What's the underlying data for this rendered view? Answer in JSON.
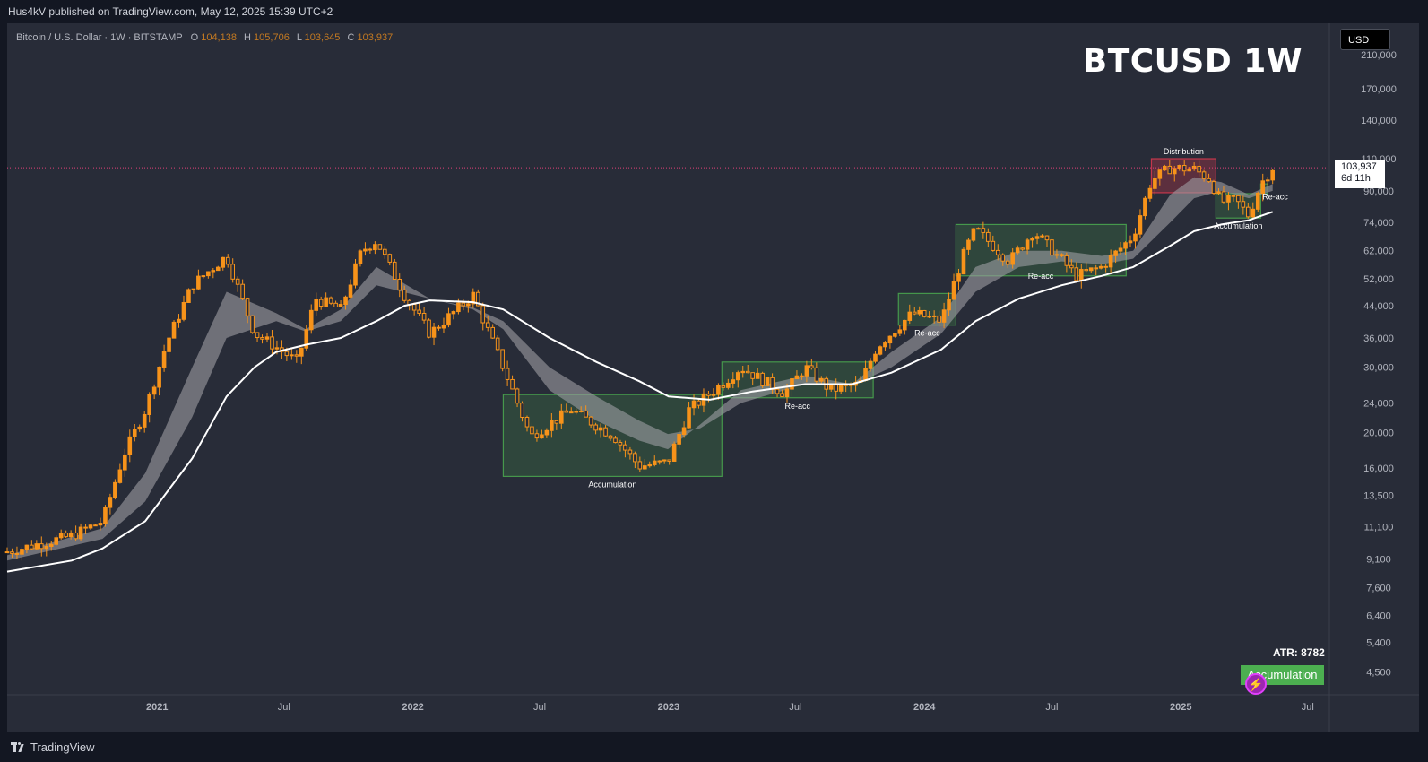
{
  "header": {
    "publisher_line": "Hus4kV published on TradingView.com, May 12, 2025 15:39 UTC+2"
  },
  "legend": {
    "symbol": "Bitcoin / U.S. Dollar · 1W · BITSTAMP",
    "o_label": "O",
    "o_value": "104,138",
    "h_label": "H",
    "h_value": "105,706",
    "l_label": "L",
    "l_value": "103,645",
    "c_label": "C",
    "c_value": "103,937"
  },
  "overlay_title": "BTCUSD 1W",
  "currency": "USD",
  "price_tag": {
    "price": "103,937",
    "countdown": "6d 11h"
  },
  "indicator": {
    "atr_label": "ATR: 8782",
    "state": "Accumulation"
  },
  "footer": {
    "brand": "TradingView"
  },
  "colors": {
    "candle": "#f7931a",
    "ema_band": "#9e9ea4",
    "sma_line": "#ffffff",
    "accumulation_zone": "#4caf50",
    "distribution_zone": "#e53950",
    "current_price_line": "#e0417a"
  },
  "chart_data": {
    "type": "candlestick",
    "scale": "log",
    "ylim": [
      3900,
      250000
    ],
    "x_range": [
      "2020-06-01",
      "2025-08-01"
    ],
    "y_ticks": [
      210000,
      170000,
      140000,
      110000,
      90000,
      74000,
      62000,
      52000,
      44000,
      36000,
      30000,
      24000,
      20000,
      16000,
      13500,
      11100,
      9100,
      7600,
      6400,
      5400,
      4500
    ],
    "y_tick_labels": [
      "210,000",
      "170,000",
      "140,000",
      "110,000",
      "90,000",
      "74,000",
      "62,000",
      "52,000",
      "44,000",
      "36,000",
      "30,000",
      "24,000",
      "20,000",
      "16,000",
      "13,500",
      "11,100",
      "9,100",
      "7,600",
      "6,400",
      "5,400",
      "4,500"
    ],
    "x_ticks": [
      {
        "date": "2021-01-01",
        "label": "2021"
      },
      {
        "date": "2021-07-01",
        "label": "Jul"
      },
      {
        "date": "2022-01-01",
        "label": "2022"
      },
      {
        "date": "2022-07-01",
        "label": "Jul"
      },
      {
        "date": "2023-01-01",
        "label": "2023"
      },
      {
        "date": "2023-07-01",
        "label": "Jul"
      },
      {
        "date": "2024-01-01",
        "label": "2024"
      },
      {
        "date": "2024-07-01",
        "label": "Jul"
      },
      {
        "date": "2025-01-01",
        "label": "2025"
      },
      {
        "date": "2025-07-01",
        "label": "Jul"
      }
    ],
    "price_points": [
      [
        "2020-06-01",
        9500
      ],
      [
        "2020-09-01",
        10500
      ],
      [
        "2020-10-15",
        11500
      ],
      [
        "2020-11-15",
        17500
      ],
      [
        "2020-12-15",
        23000
      ],
      [
        "2021-01-15",
        35000
      ],
      [
        "2021-02-20",
        50000
      ],
      [
        "2021-04-10",
        60000
      ],
      [
        "2021-05-20",
        37000
      ],
      [
        "2021-06-20",
        34000
      ],
      [
        "2021-07-20",
        31000
      ],
      [
        "2021-08-15",
        46000
      ],
      [
        "2021-09-20",
        43000
      ],
      [
        "2021-10-20",
        62000
      ],
      [
        "2021-11-10",
        66000
      ],
      [
        "2021-12-20",
        47000
      ],
      [
        "2022-01-25",
        37000
      ],
      [
        "2022-03-28",
        47000
      ],
      [
        "2022-05-10",
        30000
      ],
      [
        "2022-06-18",
        19500
      ],
      [
        "2022-08-15",
        23000
      ],
      [
        "2022-10-15",
        19500
      ],
      [
        "2022-11-20",
        16200
      ],
      [
        "2022-12-31",
        16600
      ],
      [
        "2023-01-30",
        23000
      ],
      [
        "2023-03-18",
        27000
      ],
      [
        "2023-04-14",
        30000
      ],
      [
        "2023-06-15",
        25500
      ],
      [
        "2023-07-15",
        30000
      ],
      [
        "2023-08-20",
        26000
      ],
      [
        "2023-10-01",
        27000
      ],
      [
        "2023-10-25",
        34000
      ],
      [
        "2023-12-15",
        42000
      ],
      [
        "2024-01-25",
        40000
      ],
      [
        "2024-02-28",
        62000
      ],
      [
        "2024-03-14",
        71000
      ],
      [
        "2024-05-01",
        58000
      ],
      [
        "2024-06-05",
        70000
      ],
      [
        "2024-08-05",
        53000
      ],
      [
        "2024-09-10",
        56000
      ],
      [
        "2024-10-25",
        68000
      ],
      [
        "2024-11-20",
        96000
      ],
      [
        "2024-12-17",
        104000
      ],
      [
        "2025-01-20",
        103000
      ],
      [
        "2025-02-10",
        97000
      ],
      [
        "2025-02-28",
        84000
      ],
      [
        "2025-03-20",
        85000
      ],
      [
        "2025-04-08",
        77000
      ],
      [
        "2025-04-25",
        94000
      ],
      [
        "2025-05-12",
        103937
      ]
    ],
    "ema_fast_points": [
      [
        "2020-06-01",
        9300
      ],
      [
        "2020-10-15",
        11000
      ],
      [
        "2020-12-15",
        15500
      ],
      [
        "2021-02-20",
        30000
      ],
      [
        "2021-04-10",
        48000
      ],
      [
        "2021-06-20",
        42000
      ],
      [
        "2021-08-01",
        38000
      ],
      [
        "2021-09-20",
        43000
      ],
      [
        "2021-11-10",
        56000
      ],
      [
        "2022-01-25",
        46000
      ],
      [
        "2022-03-28",
        43000
      ],
      [
        "2022-05-10",
        38000
      ],
      [
        "2022-07-15",
        26000
      ],
      [
        "2022-09-20",
        21500
      ],
      [
        "2022-11-20",
        19000
      ],
      [
        "2022-12-31",
        18000
      ],
      [
        "2023-02-15",
        21000
      ],
      [
        "2023-04-14",
        26000
      ],
      [
        "2023-07-15",
        28500
      ],
      [
        "2023-09-20",
        27000
      ],
      [
        "2023-11-15",
        33000
      ],
      [
        "2024-01-25",
        41000
      ],
      [
        "2024-03-14",
        56000
      ],
      [
        "2024-05-15",
        62000
      ],
      [
        "2024-07-15",
        62000
      ],
      [
        "2024-09-10",
        60000
      ],
      [
        "2024-10-25",
        62000
      ],
      [
        "2024-12-17",
        88000
      ],
      [
        "2025-01-20",
        98000
      ],
      [
        "2025-02-28",
        95000
      ],
      [
        "2025-04-08",
        88000
      ],
      [
        "2025-05-12",
        94000
      ]
    ],
    "ema_slow_points": [
      [
        "2020-06-01",
        9000
      ],
      [
        "2020-10-15",
        10300
      ],
      [
        "2020-12-15",
        13000
      ],
      [
        "2021-02-20",
        22000
      ],
      [
        "2021-04-10",
        36000
      ],
      [
        "2021-06-20",
        40000
      ],
      [
        "2021-08-01",
        37500
      ],
      [
        "2021-09-20",
        40000
      ],
      [
        "2021-11-10",
        50000
      ],
      [
        "2022-01-25",
        46000
      ],
      [
        "2022-03-28",
        43500
      ],
      [
        "2022-05-10",
        40000
      ],
      [
        "2022-07-15",
        30000
      ],
      [
        "2022-09-20",
        25000
      ],
      [
        "2022-11-20",
        21500
      ],
      [
        "2022-12-31",
        19800
      ],
      [
        "2023-02-15",
        20500
      ],
      [
        "2023-04-14",
        24000
      ],
      [
        "2023-07-15",
        27000
      ],
      [
        "2023-09-20",
        26800
      ],
      [
        "2023-11-15",
        30000
      ],
      [
        "2024-01-25",
        37000
      ],
      [
        "2024-03-14",
        48000
      ],
      [
        "2024-05-15",
        56000
      ],
      [
        "2024-07-15",
        58000
      ],
      [
        "2024-09-10",
        57000
      ],
      [
        "2024-10-25",
        59000
      ],
      [
        "2024-12-17",
        74000
      ],
      [
        "2025-01-20",
        86000
      ],
      [
        "2025-02-28",
        90000
      ],
      [
        "2025-04-08",
        86000
      ],
      [
        "2025-05-12",
        90000
      ]
    ],
    "sma_points": [
      [
        "2020-06-01",
        8400
      ],
      [
        "2020-09-01",
        9000
      ],
      [
        "2020-10-15",
        9700
      ],
      [
        "2020-12-15",
        11500
      ],
      [
        "2021-02-20",
        17000
      ],
      [
        "2021-04-10",
        25000
      ],
      [
        "2021-05-20",
        30000
      ],
      [
        "2021-06-20",
        33000
      ],
      [
        "2021-08-01",
        34500
      ],
      [
        "2021-09-20",
        36000
      ],
      [
        "2021-11-10",
        40000
      ],
      [
        "2021-12-20",
        44000
      ],
      [
        "2022-01-25",
        45500
      ],
      [
        "2022-03-28",
        45000
      ],
      [
        "2022-05-10",
        43000
      ],
      [
        "2022-07-15",
        36000
      ],
      [
        "2022-09-20",
        31000
      ],
      [
        "2022-11-20",
        27500
      ],
      [
        "2023-01-01",
        25000
      ],
      [
        "2023-03-01",
        24500
      ],
      [
        "2023-05-01",
        25800
      ],
      [
        "2023-07-15",
        27000
      ],
      [
        "2023-09-20",
        27000
      ],
      [
        "2023-11-15",
        29000
      ],
      [
        "2024-01-25",
        33500
      ],
      [
        "2024-03-14",
        40000
      ],
      [
        "2024-05-15",
        46000
      ],
      [
        "2024-07-15",
        50000
      ],
      [
        "2024-09-10",
        53000
      ],
      [
        "2024-10-25",
        56000
      ],
      [
        "2024-12-17",
        64000
      ],
      [
        "2025-01-20",
        70000
      ],
      [
        "2025-02-28",
        73000
      ],
      [
        "2025-04-08",
        75000
      ],
      [
        "2025-05-12",
        79000
      ]
    ],
    "zones": [
      {
        "label": "Accumulation",
        "type": "accumulation",
        "start": "2022-05-10",
        "end": "2023-03-18",
        "low": 15200,
        "high": 25300,
        "label_pos": "below"
      },
      {
        "label": "Re-acc",
        "type": "accumulation",
        "start": "2023-03-18",
        "end": "2023-10-20",
        "low": 24800,
        "high": 31000,
        "label_pos": "below"
      },
      {
        "label": "Re-acc",
        "type": "accumulation",
        "start": "2023-11-25",
        "end": "2024-02-15",
        "low": 39000,
        "high": 47500,
        "label_pos": "below"
      },
      {
        "label": "",
        "type": "accumulation",
        "start": "2024-02-15",
        "end": "2024-10-15",
        "low": 53000,
        "high": 73000,
        "label_pos": "below"
      },
      {
        "label": "Distribution",
        "type": "distribution",
        "start": "2024-11-20",
        "end": "2025-02-20",
        "low": 89000,
        "high": 110000,
        "label_pos": "above"
      },
      {
        "label": "Accumulation",
        "type": "accumulation",
        "start": "2025-02-20",
        "end": "2025-04-25",
        "low": 76000,
        "high": 88500,
        "label_pos": "below"
      },
      {
        "label": "Re-acc",
        "type": "accumulation",
        "start": "2025-04-25",
        "end": "2025-05-05",
        "low": 88500,
        "high": 94000,
        "label_pos": "right"
      }
    ],
    "floating_labels": [
      {
        "text": "Re-acc",
        "date": "2024-06-15",
        "price": 52000
      }
    ]
  }
}
